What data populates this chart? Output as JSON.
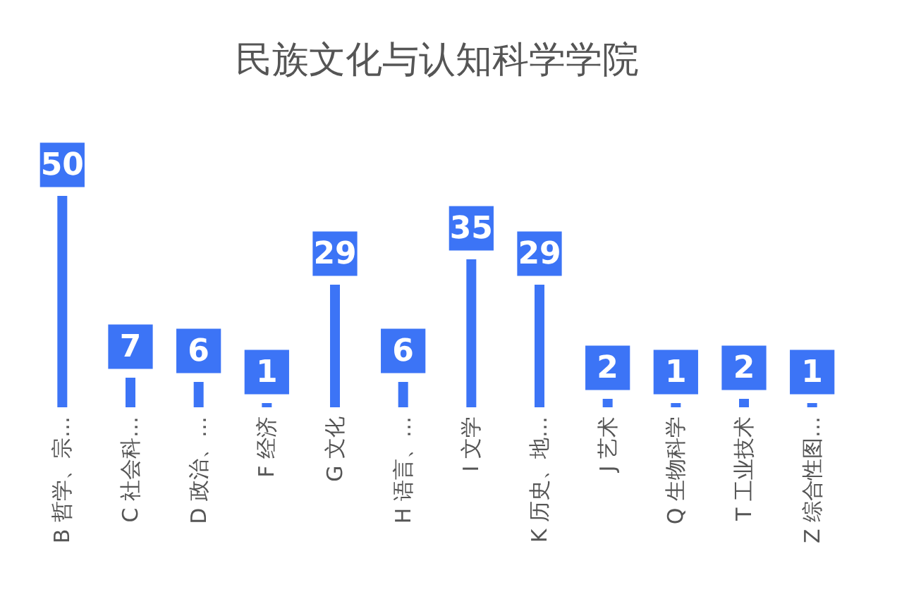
{
  "chart_data": {
    "type": "bar",
    "title": "民族文化与认知科学学院",
    "categories": [
      "B 哲学、宗…",
      "C 社会科…",
      "D 政治、…",
      "F 经济",
      "G 文化",
      "H 语言、…",
      "I 文学",
      "K 历史、地…",
      "J 艺术",
      "Q 生物科学",
      "T 工业技术",
      "Z 综合性图…"
    ],
    "values": [
      50,
      7,
      6,
      1,
      29,
      6,
      35,
      29,
      2,
      1,
      2,
      1
    ],
    "color": "#3c74f6",
    "data_labels": true
  }
}
